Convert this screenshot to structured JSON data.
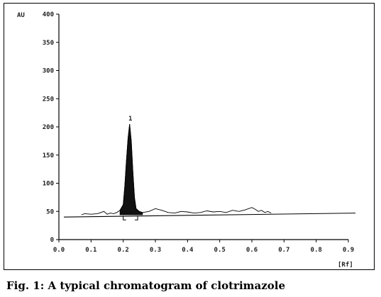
{
  "chart_data": {
    "type": "line",
    "y_unit_label": "AU",
    "x_unit_label": "[Rf]",
    "xlim": [
      0.0,
      0.9
    ],
    "ylim": [
      0,
      400
    ],
    "x_ticks": [
      "0.0",
      "0.1",
      "0.2",
      "0.3",
      "0.4",
      "0.5",
      "0.6",
      "0.7",
      "0.8",
      "0.9"
    ],
    "y_ticks": [
      "0",
      "50",
      "100",
      "150",
      "200",
      "250",
      "300",
      "350",
      "400"
    ],
    "peak_label": "1",
    "peak": {
      "rf": 0.22,
      "au": 205
    },
    "baseline_au": [
      40,
      47
    ],
    "series": [
      {
        "x": [
          0.07,
          0.08,
          0.1,
          0.12,
          0.14,
          0.15,
          0.16,
          0.17,
          0.18,
          0.19,
          0.2,
          0.205,
          0.21,
          0.215,
          0.22,
          0.225,
          0.23,
          0.235,
          0.24,
          0.25,
          0.26,
          0.28,
          0.3,
          0.32,
          0.34,
          0.36,
          0.38,
          0.4,
          0.42,
          0.44,
          0.46,
          0.48,
          0.5,
          0.52,
          0.54,
          0.56,
          0.58,
          0.6,
          0.61,
          0.62,
          0.63,
          0.64,
          0.65,
          0.66
        ],
        "y": [
          44,
          46,
          45,
          46,
          50,
          45,
          47,
          46,
          48,
          52,
          62,
          95,
          140,
          180,
          205,
          175,
          120,
          75,
          55,
          50,
          48,
          50,
          55,
          52,
          48,
          47,
          50,
          49,
          47,
          48,
          51,
          49,
          50,
          48,
          52,
          50,
          53,
          57,
          54,
          50,
          52,
          48,
          50,
          47
        ]
      }
    ]
  },
  "caption": "Fig. 1: A typical chromatogram of clotrimazole"
}
